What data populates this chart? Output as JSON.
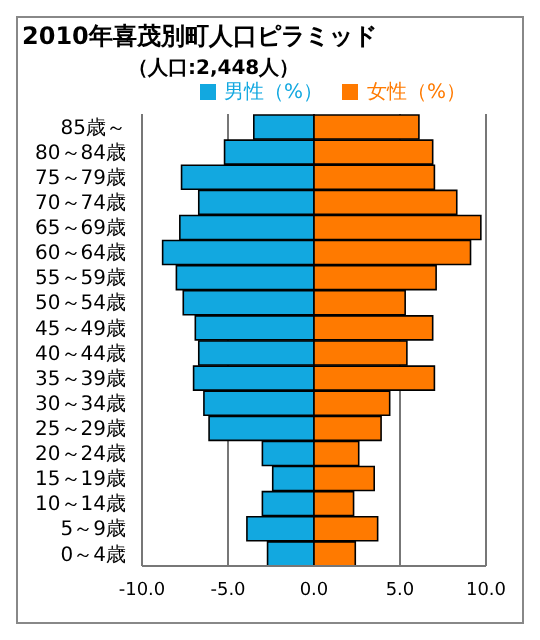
{
  "chart_data": {
    "type": "bar",
    "orientation": "horizontal",
    "stacked": true,
    "title": "2010年喜茂別町人口ピラミッド",
    "subtitle": "（人口:2,448人）",
    "categories": [
      "85歳～",
      "80～84歳",
      "75～79歳",
      "70～74歳",
      "65～69歳",
      "60～64歳",
      "55～59歳",
      "50～54歳",
      "45～49歳",
      "40～44歳",
      "35～39歳",
      "30～34歳",
      "25～29歳",
      "20～24歳",
      "15～19歳",
      "10～14歳",
      "5～9歳",
      "0～4歳"
    ],
    "series": [
      {
        "name": "男性（%）",
        "color": "#12a8e0",
        "values": [
          -3.5,
          -5.2,
          -7.7,
          -6.7,
          -7.8,
          -8.8,
          -8.0,
          -7.6,
          -6.9,
          -6.7,
          -7.0,
          -6.4,
          -6.1,
          -3.0,
          -2.4,
          -3.0,
          -3.9,
          -2.7
        ]
      },
      {
        "name": "女性（%）",
        "color": "#ff7a00",
        "values": [
          6.1,
          6.9,
          7.0,
          8.3,
          9.7,
          9.1,
          7.1,
          5.3,
          6.9,
          5.4,
          7.0,
          4.4,
          3.9,
          2.6,
          3.5,
          2.3,
          3.7,
          2.4
        ]
      }
    ],
    "xlim": [
      -10,
      10
    ],
    "xticks": [
      {
        "value": -10,
        "label": "-10.0"
      },
      {
        "value": -5,
        "label": "-5.0"
      },
      {
        "value": 0,
        "label": "0.0"
      },
      {
        "value": 5,
        "label": "5.0"
      },
      {
        "value": 10,
        "label": "10.0"
      }
    ],
    "grid": "x",
    "legend": "top right"
  }
}
